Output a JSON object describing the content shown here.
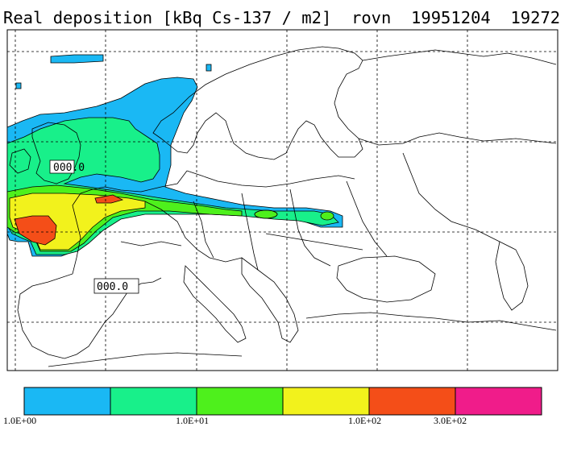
{
  "title": "Real deposition [kBq Cs-137 / m2]  rovn  19951204  19272",
  "map_labels": [
    {
      "id": "label-north",
      "text": "000.0"
    },
    {
      "id": "label-south",
      "text": "000.0"
    }
  ],
  "legend": {
    "bins": [
      {
        "color": "#1ab8f4"
      },
      {
        "color": "#18f08a"
      },
      {
        "color": "#4ef01c"
      },
      {
        "color": "#f2f21c"
      },
      {
        "color": "#f44e18"
      },
      {
        "color": "#f01c8a"
      }
    ],
    "labels": [
      "1.0E+00",
      "1.0E+01",
      "1.0E+02",
      "3.0E+02"
    ]
  },
  "colors": {
    "land": "#ffffff",
    "outline": "#000000",
    "grid": "#000000"
  }
}
